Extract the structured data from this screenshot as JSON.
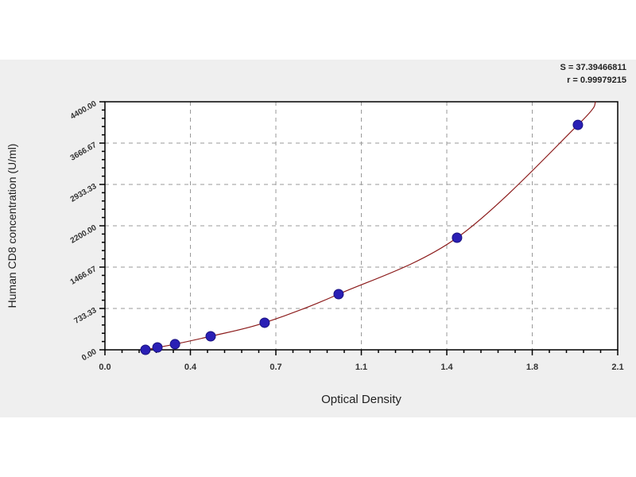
{
  "chart_data": {
    "type": "scatter",
    "title": "",
    "xlabel": "Optical Density",
    "ylabel": "Human CD8 concentration (U/ml)",
    "xlim": [
      0,
      2.1
    ],
    "ylim": [
      0,
      4400
    ],
    "x_ticks": [
      0,
      0.35,
      0.7,
      1.05,
      1.4,
      1.75,
      2.1
    ],
    "x_tick_labels": [
      "0.0",
      "0.4",
      "0.7",
      "1.1",
      "1.4",
      "1.8",
      "2.1"
    ],
    "y_ticks": [
      0,
      733.33,
      1466.67,
      2200,
      2933.33,
      3666.67,
      4400
    ],
    "y_tick_labels": [
      "0.00",
      "733.33",
      "1466.67",
      "2200.00",
      "2933.33",
      "3666.67",
      "4400.00"
    ],
    "grid": true,
    "points": [
      {
        "x": 0.166,
        "y": 0
      },
      {
        "x": 0.215,
        "y": 42
      },
      {
        "x": 0.287,
        "y": 100
      },
      {
        "x": 0.433,
        "y": 240
      },
      {
        "x": 0.654,
        "y": 480
      },
      {
        "x": 0.957,
        "y": 987
      },
      {
        "x": 1.442,
        "y": 1988
      },
      {
        "x": 1.937,
        "y": 3990
      }
    ],
    "fit_curve_end": {
      "x": 2.01,
      "y": 4400
    },
    "colors": {
      "points": "#2a1fb5",
      "curve": "#8b1a1a",
      "grid": "#999999",
      "background": "#efefef"
    },
    "annotations": [
      "S = 37.39466811",
      "r = 0.99979215"
    ]
  }
}
